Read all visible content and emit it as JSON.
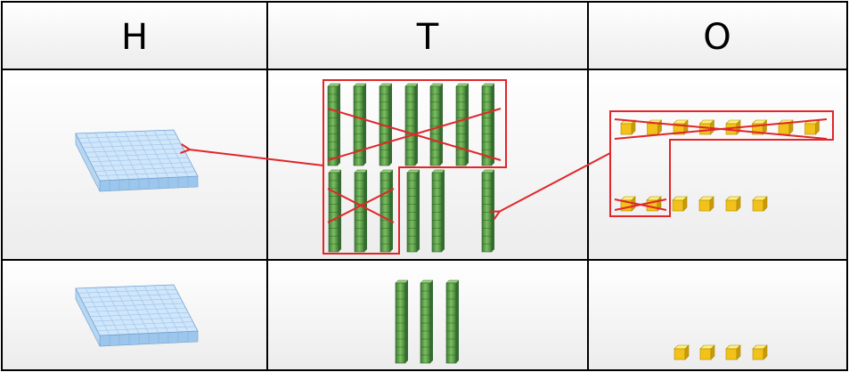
{
  "table": {
    "headers": [
      "H",
      "T",
      "O"
    ]
  }
}
